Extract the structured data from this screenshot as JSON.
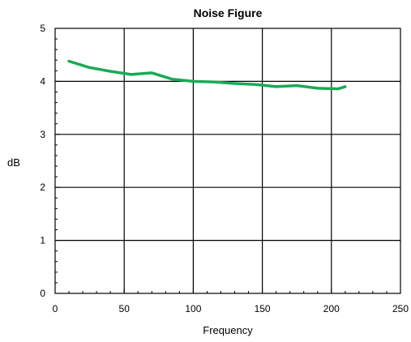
{
  "chart_data": {
    "type": "line",
    "title": "Noise Figure",
    "xlabel": "Frequency",
    "ylabel": "dB",
    "xlim": [
      0,
      250
    ],
    "ylim": [
      0,
      5
    ],
    "x_ticks": [
      0,
      50,
      100,
      150,
      200,
      250
    ],
    "y_ticks": [
      0,
      1,
      2,
      3,
      4,
      5
    ],
    "x_tick_labels": [
      "0",
      "50",
      "100",
      "150",
      "200",
      "250"
    ],
    "y_tick_labels": [
      "0",
      "1",
      "2",
      "3",
      "4",
      "5"
    ],
    "grid": true,
    "series": [
      {
        "color": "#1aaa55",
        "x": [
          10,
          25,
          40,
          55,
          70,
          85,
          100,
          115,
          130,
          145,
          160,
          175,
          190,
          205,
          210
        ],
        "y": [
          4.38,
          4.26,
          4.19,
          4.13,
          4.16,
          4.04,
          4.0,
          3.99,
          3.96,
          3.94,
          3.9,
          3.92,
          3.87,
          3.86,
          3.9
        ]
      }
    ]
  }
}
